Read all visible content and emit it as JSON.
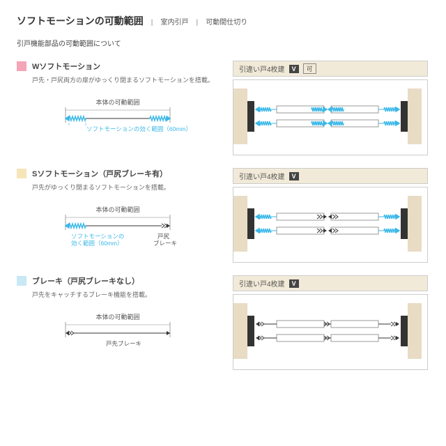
{
  "title": "ソフトモーションの可動範囲",
  "sub1a": "室内引戸",
  "sub1b": "可動間仕切り",
  "subtitle": "引戸機能部品の可動範囲について",
  "sections": [
    {
      "color": "#f5a5b8",
      "name": "Wソフトモーション",
      "desc": "戸先・戸尻両方の扉がゆっくり閉まるソフトモーションを搭載。",
      "tag": "引違い戸4枚建",
      "showKa": true,
      "leftRange": "本体の可動範囲",
      "leftNote": "ソフトモーションの効く範囲（60mm）",
      "type": "W"
    },
    {
      "color": "#f5e5b8",
      "name": "Sソフトモーション（戸尻ブレーキ有）",
      "desc": "戸先がゆっくり閉まるソフトモーションを搭載。",
      "tag": "引違い戸4枚建",
      "showKa": false,
      "leftRange": "本体の可動範囲",
      "leftNote1": "ソフトモーションの",
      "leftNote1b": "効く範囲（60mm）",
      "leftNote2": "戸尻",
      "leftNote2b": "ブレーキ",
      "type": "S"
    },
    {
      "color": "#c8e8f5",
      "name": "ブレーキ（戸尻ブレーキなし）",
      "desc": "戸先をキャッチするブレーキ機能を搭載。",
      "tag": "引違い戸4枚建",
      "showKa": false,
      "leftRange": "本体の可動範囲",
      "leftNote": "戸先ブレーキ",
      "type": "B"
    }
  ]
}
